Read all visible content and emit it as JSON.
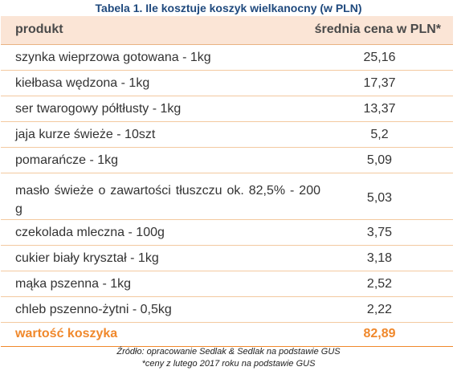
{
  "title": "Tabela 1. Ile kosztuje koszyk wielkanocny (w PLN)",
  "header": {
    "col_product": "produkt",
    "col_price": "średnia cena w PLN*"
  },
  "rows": [
    {
      "product": "szynka wieprzowa gotowana - 1kg",
      "price": "25,16"
    },
    {
      "product": "kiełbasa wędzona - 1kg",
      "price": "17,37"
    },
    {
      "product": "ser twarogowy półtłusty - 1kg",
      "price": "13,37"
    },
    {
      "product": "jaja kurze świeże - 10szt",
      "price": "5,2"
    },
    {
      "product": "pomarańcze - 1kg",
      "price": "5,09"
    },
    {
      "product": "masło świeże o zawartości tłuszczu ok. 82,5% - 200 g",
      "price": "5,03"
    },
    {
      "product": "czekolada mleczna - 100g",
      "price": "3,75"
    },
    {
      "product": "cukier biały kryształ - 1kg",
      "price": "3,18"
    },
    {
      "product": "mąka pszenna - 1kg",
      "price": "2,52"
    },
    {
      "product": "chleb pszenno-żytni - 0,5kg",
      "price": "2,22"
    }
  ],
  "total": {
    "label": "wartość koszyka",
    "value": "82,89"
  },
  "footer": {
    "source": "Źródło: opracowanie Sedlak & Sedlak na podstawie GUS",
    "note": "*ceny z lutego 2017 roku na podstawie GUS"
  },
  "colors": {
    "title": "#1f497d",
    "header_bg": "#fbe5d6",
    "row_border": "#f3c9a0",
    "total_accent": "#f0882b"
  }
}
